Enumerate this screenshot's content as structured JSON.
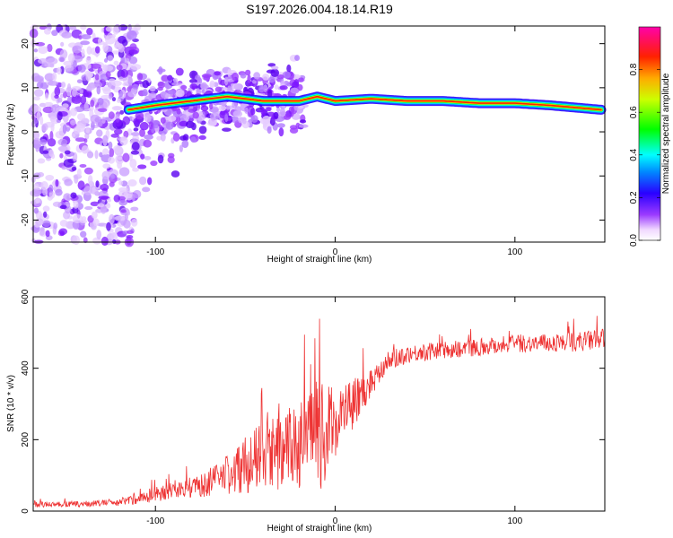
{
  "chart_data": [
    {
      "type": "heatmap",
      "title": "S197.2026.004.18.14.R19",
      "xlabel": "Height of straight line (km)",
      "ylabel": "Frequency (Hz)",
      "xlim": [
        -168,
        150
      ],
      "ylim": [
        -25,
        24
      ],
      "xticks": [
        "-100",
        "0",
        "100"
      ],
      "yticks": [
        "-20",
        "-10",
        "0",
        "10",
        "20"
      ],
      "colorbar": {
        "label": "Normalized spectral amplitude",
        "range": [
          0,
          1
        ],
        "ticks": [
          "0.0",
          "0.2",
          "0.4",
          "0.6",
          "0.8"
        ]
      },
      "ridge": {
        "description": "dominant frequency ridge",
        "x": [
          -115,
          -100,
          -80,
          -60,
          -40,
          -20,
          -10,
          0,
          20,
          40,
          60,
          80,
          100,
          120,
          148
        ],
        "y": [
          5,
          6,
          7,
          8,
          7,
          7,
          8,
          7,
          7.5,
          7,
          7,
          6.5,
          6.5,
          6,
          5
        ]
      }
    },
    {
      "type": "line",
      "xlabel": "Height of straight line (km)",
      "ylabel": "SNR (10 * v/v)",
      "xlim": [
        -168,
        150
      ],
      "ylim": [
        0,
        600
      ],
      "xticks": [
        "-100",
        "0",
        "100"
      ],
      "yticks": [
        "0",
        "200",
        "400",
        "600"
      ],
      "series": [
        {
          "name": "SNR",
          "color": "#ee3333",
          "x": [
            -168,
            -140,
            -120,
            -105,
            -90,
            -75,
            -60,
            -50,
            -40,
            -30,
            -20,
            -10,
            -5,
            0,
            5,
            10,
            15,
            20,
            25,
            30,
            40,
            60,
            80,
            100,
            120,
            135,
            150
          ],
          "y": [
            18,
            20,
            25,
            40,
            60,
            70,
            100,
            130,
            150,
            170,
            185,
            200,
            220,
            250,
            280,
            300,
            330,
            360,
            400,
            420,
            440,
            450,
            460,
            470,
            470,
            475,
            480
          ],
          "spread": [
            8,
            8,
            10,
            18,
            25,
            30,
            60,
            80,
            100,
            110,
            120,
            150,
            140,
            100,
            80,
            70,
            55,
            45,
            35,
            30,
            25,
            25,
            25,
            25,
            25,
            28,
            30
          ]
        }
      ]
    }
  ]
}
